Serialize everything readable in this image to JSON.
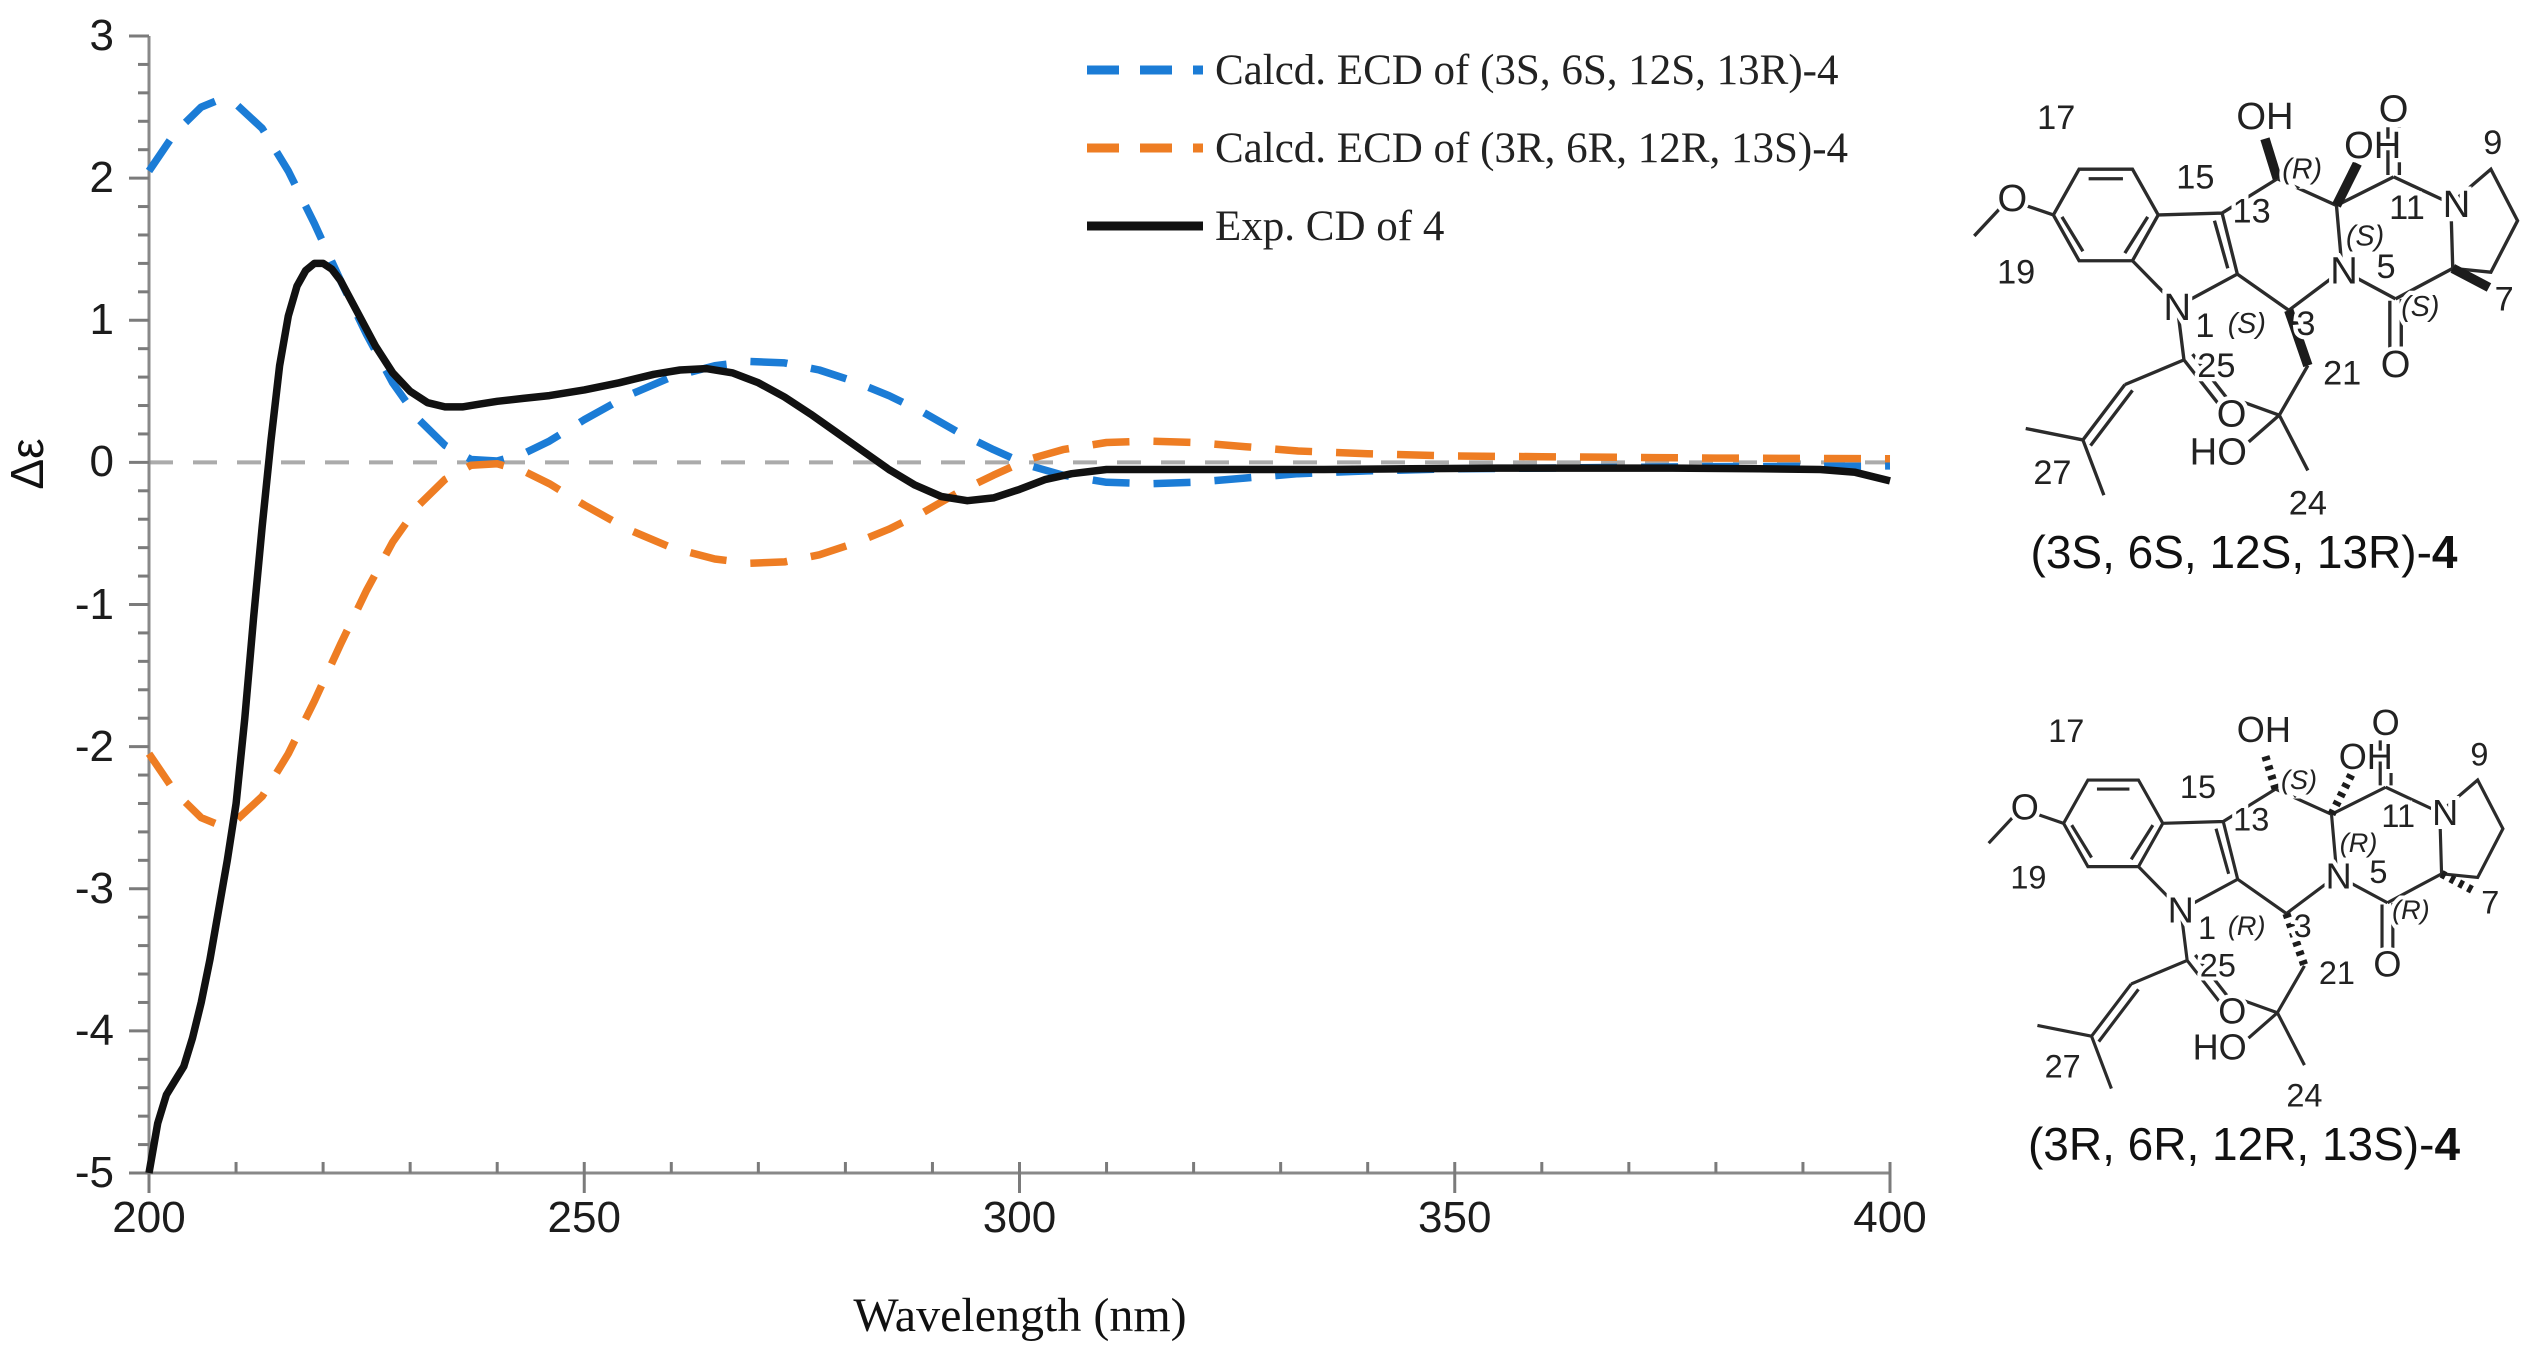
{
  "chart_data": {
    "type": "line",
    "title": "",
    "xlabel": "Wavelength (nm)",
    "ylabel": "Δε",
    "xlim": [
      200,
      400
    ],
    "ylim": [
      -5,
      3
    ],
    "xticks": [
      200,
      250,
      300,
      350,
      400
    ],
    "yticks": [
      3,
      2,
      1,
      0,
      -1,
      -2,
      -3,
      -4,
      -5
    ],
    "x_minor_step": 10,
    "y_minor_step": 0.2,
    "grid": false,
    "zero_line": true,
    "legend_position": "top-center",
    "series": [
      {
        "name": "Calcd. ECD of (3S, 6S, 12S, 13R)-4",
        "color": "#1b7cd6",
        "style": "dashed",
        "points": [
          [
            200,
            2.05
          ],
          [
            203,
            2.32
          ],
          [
            206,
            2.5
          ],
          [
            208,
            2.55
          ],
          [
            210,
            2.52
          ],
          [
            213,
            2.35
          ],
          [
            216,
            2.05
          ],
          [
            219,
            1.68
          ],
          [
            222,
            1.28
          ],
          [
            225,
            0.9
          ],
          [
            228,
            0.56
          ],
          [
            231,
            0.3
          ],
          [
            234,
            0.12
          ],
          [
            237,
            0.02
          ],
          [
            240,
            0.01
          ],
          [
            243,
            0.06
          ],
          [
            246,
            0.15
          ],
          [
            250,
            0.3
          ],
          [
            255,
            0.47
          ],
          [
            260,
            0.6
          ],
          [
            265,
            0.68
          ],
          [
            269,
            0.71
          ],
          [
            273,
            0.7
          ],
          [
            277,
            0.65
          ],
          [
            281,
            0.57
          ],
          [
            285,
            0.47
          ],
          [
            289,
            0.35
          ],
          [
            293,
            0.21
          ],
          [
            297,
            0.09
          ],
          [
            301,
            -0.02
          ],
          [
            305,
            -0.09
          ],
          [
            310,
            -0.14
          ],
          [
            315,
            -0.15
          ],
          [
            320,
            -0.14
          ],
          [
            326,
            -0.11
          ],
          [
            332,
            -0.08
          ],
          [
            340,
            -0.06
          ],
          [
            350,
            -0.045
          ],
          [
            360,
            -0.04
          ],
          [
            370,
            -0.035
          ],
          [
            380,
            -0.03
          ],
          [
            390,
            -0.028
          ],
          [
            400,
            -0.025
          ]
        ]
      },
      {
        "name": "Calcd. ECD of (3R, 6R, 12R, 13S)-4",
        "color": "#ee7d23",
        "style": "dashed",
        "points": [
          [
            200,
            -2.05
          ],
          [
            203,
            -2.32
          ],
          [
            206,
            -2.5
          ],
          [
            208,
            -2.55
          ],
          [
            210,
            -2.52
          ],
          [
            213,
            -2.35
          ],
          [
            216,
            -2.05
          ],
          [
            219,
            -1.68
          ],
          [
            222,
            -1.28
          ],
          [
            225,
            -0.9
          ],
          [
            228,
            -0.56
          ],
          [
            231,
            -0.3
          ],
          [
            234,
            -0.12
          ],
          [
            237,
            -0.02
          ],
          [
            240,
            -0.01
          ],
          [
            243,
            -0.06
          ],
          [
            246,
            -0.15
          ],
          [
            250,
            -0.3
          ],
          [
            255,
            -0.47
          ],
          [
            260,
            -0.6
          ],
          [
            265,
            -0.68
          ],
          [
            269,
            -0.71
          ],
          [
            273,
            -0.7
          ],
          [
            277,
            -0.65
          ],
          [
            281,
            -0.57
          ],
          [
            285,
            -0.47
          ],
          [
            289,
            -0.35
          ],
          [
            293,
            -0.21
          ],
          [
            297,
            -0.09
          ],
          [
            301,
            0.02
          ],
          [
            305,
            0.09
          ],
          [
            310,
            0.14
          ],
          [
            315,
            0.15
          ],
          [
            320,
            0.14
          ],
          [
            326,
            0.11
          ],
          [
            332,
            0.08
          ],
          [
            340,
            0.06
          ],
          [
            350,
            0.045
          ],
          [
            360,
            0.04
          ],
          [
            370,
            0.035
          ],
          [
            380,
            0.03
          ],
          [
            390,
            0.028
          ],
          [
            400,
            0.025
          ]
        ]
      },
      {
        "name": "Exp. CD of 4",
        "color": "#111111",
        "style": "solid",
        "points": [
          [
            200,
            -5.0
          ],
          [
            201,
            -4.65
          ],
          [
            202,
            -4.45
          ],
          [
            203,
            -4.35
          ],
          [
            204,
            -4.25
          ],
          [
            205,
            -4.05
          ],
          [
            206,
            -3.8
          ],
          [
            207,
            -3.5
          ],
          [
            208,
            -3.15
          ],
          [
            209,
            -2.8
          ],
          [
            210,
            -2.4
          ],
          [
            211,
            -1.8
          ],
          [
            212,
            -1.1
          ],
          [
            213,
            -0.45
          ],
          [
            214,
            0.15
          ],
          [
            215,
            0.68
          ],
          [
            216,
            1.03
          ],
          [
            217,
            1.24
          ],
          [
            218,
            1.35
          ],
          [
            219,
            1.4
          ],
          [
            220,
            1.4
          ],
          [
            221,
            1.36
          ],
          [
            222,
            1.28
          ],
          [
            224,
            1.05
          ],
          [
            226,
            0.82
          ],
          [
            228,
            0.63
          ],
          [
            230,
            0.5
          ],
          [
            232,
            0.42
          ],
          [
            234,
            0.39
          ],
          [
            236,
            0.39
          ],
          [
            238,
            0.41
          ],
          [
            240,
            0.43
          ],
          [
            243,
            0.45
          ],
          [
            246,
            0.47
          ],
          [
            250,
            0.51
          ],
          [
            254,
            0.56
          ],
          [
            258,
            0.62
          ],
          [
            261,
            0.65
          ],
          [
            264,
            0.66
          ],
          [
            267,
            0.63
          ],
          [
            270,
            0.56
          ],
          [
            273,
            0.46
          ],
          [
            276,
            0.34
          ],
          [
            279,
            0.21
          ],
          [
            282,
            0.08
          ],
          [
            285,
            -0.05
          ],
          [
            288,
            -0.16
          ],
          [
            291,
            -0.24
          ],
          [
            294,
            -0.27
          ],
          [
            297,
            -0.25
          ],
          [
            300,
            -0.19
          ],
          [
            303,
            -0.12
          ],
          [
            306,
            -0.08
          ],
          [
            310,
            -0.05
          ],
          [
            315,
            -0.05
          ],
          [
            325,
            -0.05
          ],
          [
            335,
            -0.05
          ],
          [
            345,
            -0.045
          ],
          [
            355,
            -0.04
          ],
          [
            365,
            -0.04
          ],
          [
            375,
            -0.04
          ],
          [
            385,
            -0.045
          ],
          [
            392,
            -0.05
          ],
          [
            396,
            -0.07
          ],
          [
            400,
            -0.13
          ]
        ]
      }
    ]
  },
  "mol_labels": {
    "n17": "17",
    "n19": "19",
    "n15": "15",
    "n13": "13",
    "n11": "11",
    "n9": "9",
    "n5": "5",
    "n7": "7",
    "n3": "3",
    "n1": "1",
    "n21": "21",
    "n24": "24",
    "n25": "25",
    "n27": "27",
    "oh": "OH",
    "ho": "HO",
    "o": "O",
    "n": "N"
  },
  "structures": [
    {
      "caption_pre": "(3S, 6S, 12S, 13R)-",
      "caption_num": "4",
      "stereo": {
        "s13": "(R)",
        "s12": "(S)",
        "s3": "(S)",
        "s6": "(S)"
      }
    },
    {
      "caption_pre": "(3R, 6R, 12R, 13S)-",
      "caption_num": "4",
      "stereo": {
        "s13": "(S)",
        "s12": "(R)",
        "s3": "(R)",
        "s6": "(R)"
      }
    }
  ]
}
